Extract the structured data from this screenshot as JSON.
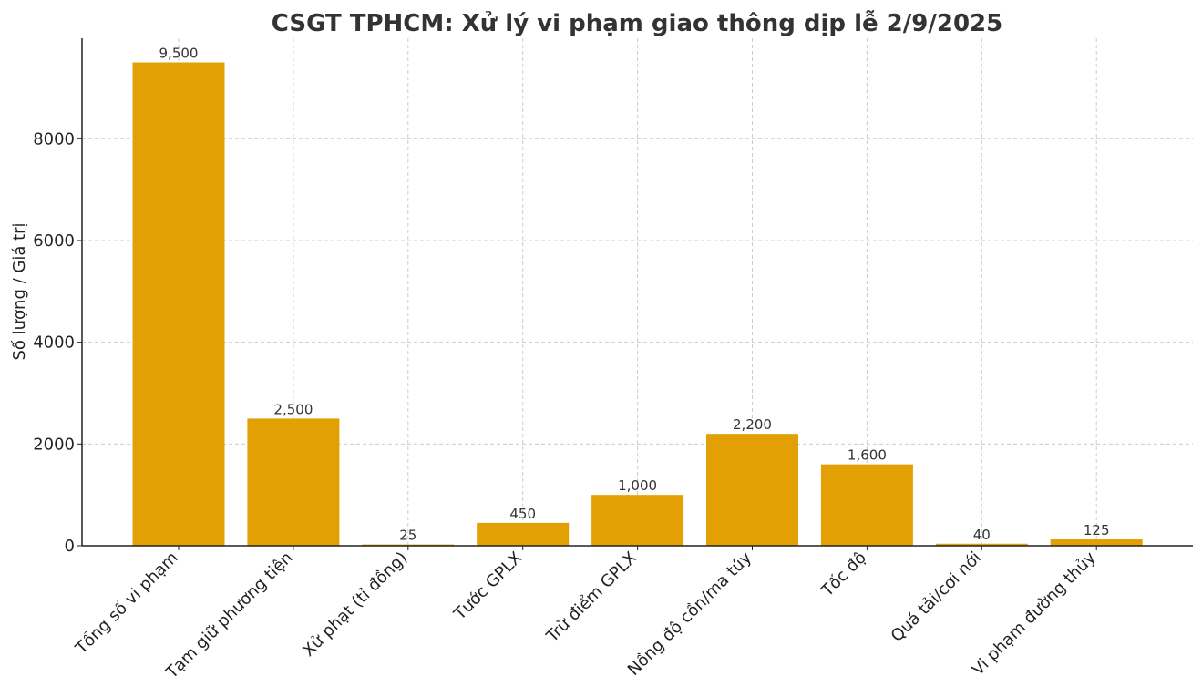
{
  "chart_data": {
    "type": "bar",
    "title": "CSGT TPHCM: Xử lý vi phạm giao thông dịp lễ 2/9/2025",
    "xlabel": "",
    "ylabel": "Số lượng / Giá trị",
    "categories": [
      "Tổng số vi phạm",
      "Tạm giữ phương tiện",
      "Xử phạt (tỉ đồng)",
      "Tước GPLX",
      "Trừ điểm GPLX",
      "Nồng độ cồn/ma túy",
      "Tốc độ",
      "Quá tải/cơi nới",
      "Vi phạm đường thủy"
    ],
    "values": [
      9500,
      2500,
      25,
      450,
      1000,
      2200,
      1600,
      40,
      125
    ],
    "value_labels": [
      "9,500",
      "2,500",
      "25",
      "450",
      "1,000",
      "2,200",
      "1,600",
      "40",
      "125"
    ],
    "yticks": [
      0,
      2000,
      4000,
      6000,
      8000
    ],
    "ytick_labels": [
      "0",
      "2000",
      "4000",
      "6000",
      "8000"
    ],
    "ylim": [
      0,
      9975
    ],
    "grid": true,
    "bar_color": "#E3A004"
  }
}
